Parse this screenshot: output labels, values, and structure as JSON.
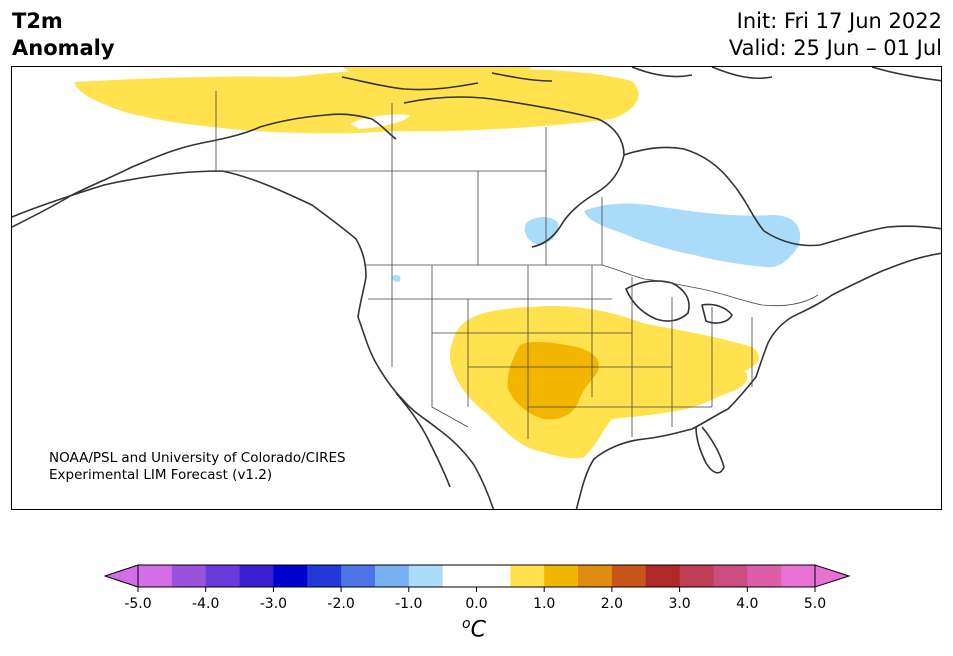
{
  "title": {
    "line1": "T2m",
    "line2": "Anomaly"
  },
  "dates": {
    "init": "Init: Fri 17 Jun 2022",
    "valid": "Valid: 25 Jun – 01 Jul"
  },
  "credit": {
    "line1": "NOAA/PSL and University of Colorado/CIRES",
    "line2": "Experimental LIM Forecast (v1.2)"
  },
  "colorbar": {
    "unit_base": "o",
    "unit_var": "C",
    "ticks": [
      "-5.0",
      "-4.0",
      "-3.0",
      "-2.0",
      "-1.0",
      "0.0",
      "1.0",
      "2.0",
      "3.0",
      "4.0",
      "5.0"
    ],
    "colors": [
      "#d46ee8",
      "#9a51dc",
      "#6a3bdc",
      "#3a1fd0",
      "#0000cc",
      "#2438d8",
      "#4d73e6",
      "#78b0f2",
      "#aadcfa",
      "#ffffff",
      "#ffffff",
      "#ffe24d",
      "#f2b600",
      "#e08c10",
      "#c85418",
      "#b02828",
      "#c03c54",
      "#cc4c80",
      "#dc5ea8",
      "#e872d4"
    ],
    "under_color": "#d46ee8",
    "over_color": "#e872d4"
  },
  "colors": {
    "warm_light": "#ffe24d",
    "warm_medium": "#f2b600",
    "cool_light": "#aadcfa",
    "coast": "#333333"
  }
}
